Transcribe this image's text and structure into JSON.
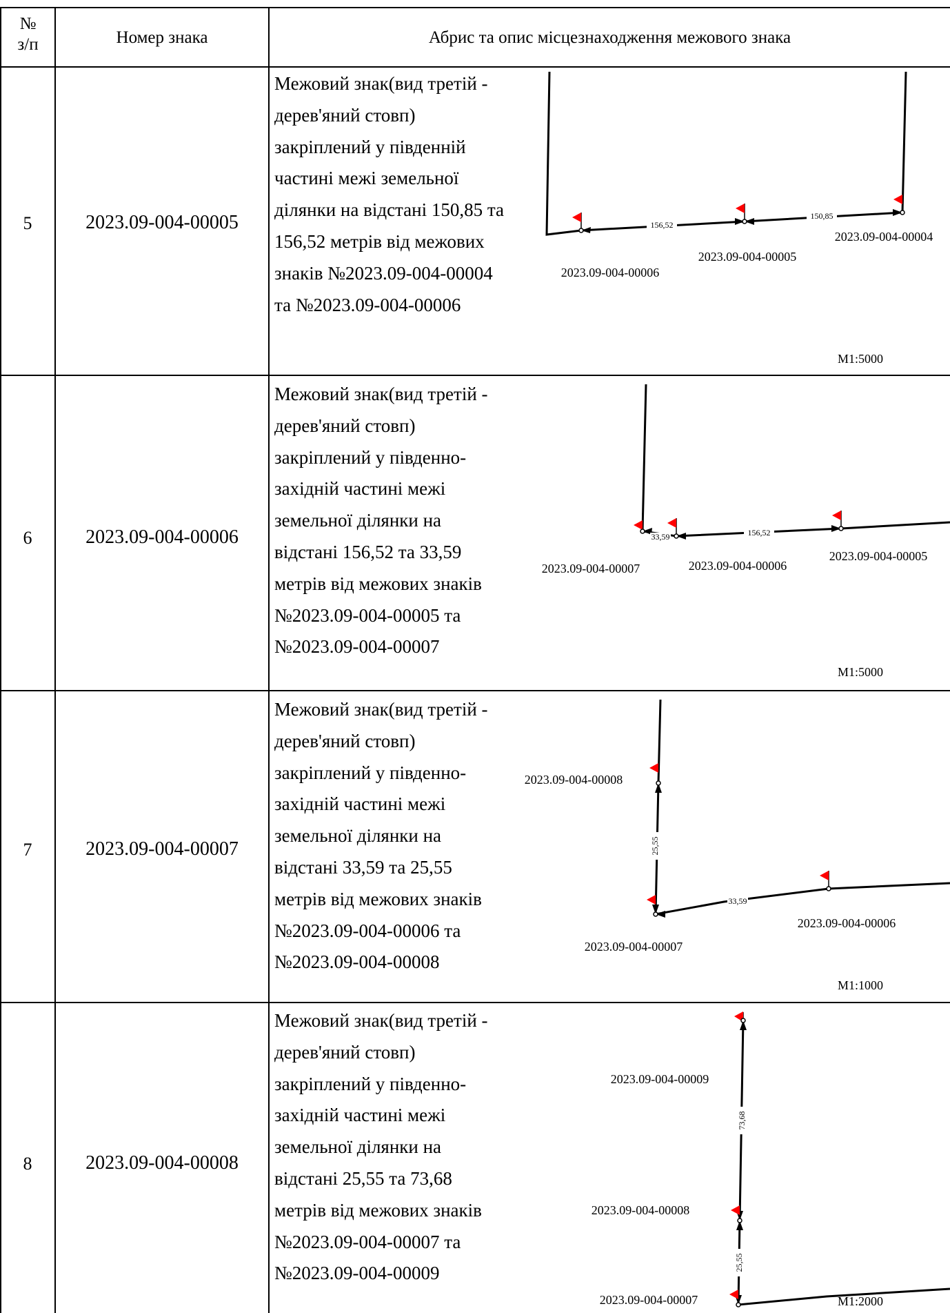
{
  "header": {
    "col_num_top": "№",
    "col_num_bottom": "з/п",
    "col_code": "Номер знака",
    "col_desc": "Абрис та опис місцезнаходження межового знака"
  },
  "rows": [
    {
      "num": "5",
      "code": "2023.09-004-00005",
      "desc_lines": [
        "Межовий знак(вид третій -",
        "дерев'яний стовп)",
        "закріплений у південній",
        "частині межі земельної",
        "ділянки на відстані 150,85 та",
        "156,52 метрів від межових",
        "знаків №2023.09-004-00004",
        "та №2023.09-004-00006"
      ],
      "sketch": {
        "labels": [
          "2023.09-004-00006",
          "2023.09-004-00005",
          "2023.09-004-00004"
        ],
        "distances": [
          "156,52",
          "150,85"
        ],
        "scale": "М1:5000"
      }
    },
    {
      "num": "6",
      "code": "2023.09-004-00006",
      "desc_lines": [
        "Межовий знак(вид третій -",
        "дерев'яний стовп)",
        "закріплений у південно-",
        "західній частині межі",
        "земельної ділянки на",
        "відстані 156,52 та 33,59",
        "метрів від межових знаків",
        "№2023.09-004-00005 та",
        "№2023.09-004-00007"
      ],
      "sketch": {
        "labels": [
          "2023.09-004-00007",
          "2023.09-004-00006",
          "2023.09-004-00005"
        ],
        "distances": [
          "33,59",
          "156,52"
        ],
        "scale": "М1:5000"
      }
    },
    {
      "num": "7",
      "code": "2023.09-004-00007",
      "desc_lines": [
        "Межовий знак(вид третій -",
        "дерев'яний стовп)",
        "закріплений у південно-",
        "західній частині межі",
        "земельної ділянки на",
        "відстані 33,59 та 25,55",
        "метрів від межових знаків",
        "№2023.09-004-00006 та",
        "№2023.09-004-00008"
      ],
      "sketch": {
        "labels": [
          "2023.09-004-00008",
          "2023.09-004-00007",
          "2023.09-004-00006"
        ],
        "distances": [
          "25,55",
          "33,59"
        ],
        "scale": "М1:1000"
      }
    },
    {
      "num": "8",
      "code": "2023.09-004-00008",
      "desc_lines": [
        "Межовий знак(вид третій -",
        "дерев'яний стовп)",
        "закріплений у південно-",
        "західній частині межі",
        "земельної ділянки на",
        "відстані 25,55 та 73,68",
        "метрів від межових знаків",
        "№2023.09-004-00007 та",
        "№2023.09-004-00009"
      ],
      "sketch": {
        "labels": [
          "2023.09-004-00009",
          "2023.09-004-00008",
          "2023.09-004-00007"
        ],
        "distances": [
          "73,68",
          "25,55"
        ],
        "scale": "М1:2000"
      }
    }
  ],
  "colors": {
    "flag": "#ff0000",
    "line": "#000000"
  }
}
